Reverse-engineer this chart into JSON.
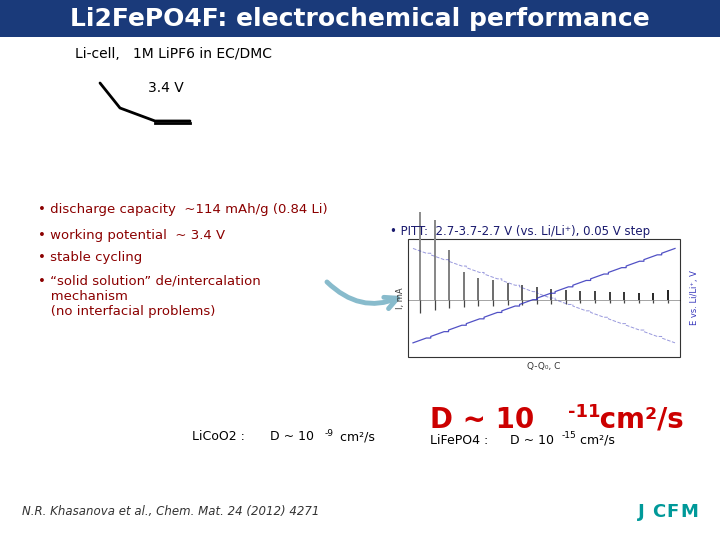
{
  "title": "Li2FePO4F: electrochemical performance",
  "title_bg": "#1a3a7a",
  "title_color": "#ffffff",
  "title_fontsize": 18,
  "subtitle": "Li-cell,   1M LiPF6 in EC/DMC",
  "subtitle_fontsize": 10,
  "bg_color": "#ffffff",
  "voltage_label": "3.4 V",
  "pitt_bullet": "• PITT:  2.7-3.7-2.7 V (vs. Li/Li⁺), 0.05 V step",
  "bullets": [
    "• discharge capacity  ~114 mAh/g (0.84 Li)",
    "• working potential  ~ 3.4 V",
    "• stable cycling",
    "• “solid solution” de/intercalation",
    "   mechanism",
    "   (no interfacial problems)"
  ],
  "bullet_color": "#8b0000",
  "reference": "N.R. Khasanova et al., Chem. Mat. 24 (2012) 4271"
}
